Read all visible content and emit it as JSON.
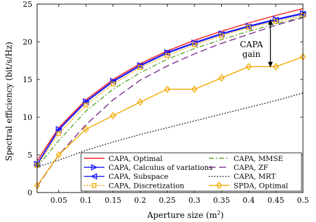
{
  "chart_data": {
    "type": "line",
    "xlabel": "Aperture size (m",
    "xlabel_sup": "2",
    "xlabel_close": ")",
    "ylabel": "Spectral efficiency (bit/s/Hz)",
    "xlim": [
      0.01,
      0.5
    ],
    "ylim": [
      0,
      25
    ],
    "xticks": [
      0.05,
      0.1,
      0.15,
      0.2,
      0.25,
      0.3,
      0.35,
      0.4,
      0.45,
      0.5
    ],
    "yticks": [
      0,
      5,
      10,
      15,
      20,
      25
    ],
    "xtick_labels": [
      "0.05",
      "0.1",
      "0.15",
      "0.2",
      "0.25",
      "0.3",
      "0.35",
      "0.4",
      "0.45",
      "0.5"
    ],
    "ytick_labels": [
      "0",
      "5",
      "10",
      "15",
      "20",
      "25"
    ],
    "grid": false,
    "legend_position": "bottom, inside axes, two columns",
    "annotation": {
      "text_line1": "CAPA",
      "text_line2": "gain",
      "x": 0.44,
      "y_top": 23.0,
      "y_bottom": 16.6
    },
    "x": [
      0.01,
      0.05,
      0.1,
      0.15,
      0.2,
      0.25,
      0.3,
      0.35,
      0.4,
      0.45,
      0.5
    ],
    "series": [
      {
        "name": "CAPA, Optimal",
        "color": "#ff1a1a",
        "dash": "",
        "marker": "none",
        "values": [
          4.2,
          8.6,
          12.3,
          15.0,
          17.1,
          18.8,
          20.2,
          21.4,
          22.5,
          23.5,
          24.4
        ]
      },
      {
        "name": "CAPA, Calculus of variations",
        "color": "#1a1aff",
        "dash": "",
        "marker": "triangle-right",
        "values": [
          3.8,
          8.4,
          12.1,
          14.8,
          16.9,
          18.6,
          19.9,
          21.1,
          22.1,
          23.0,
          23.8
        ]
      },
      {
        "name": "CAPA, Subspace",
        "color": "#1a1aff",
        "dash": "",
        "marker": "triangle-left",
        "values": [
          3.7,
          8.3,
          12.0,
          14.7,
          16.8,
          18.5,
          19.8,
          21.0,
          22.0,
          22.9,
          23.7
        ]
      },
      {
        "name": "CAPA, Discretization",
        "color": "#f2a900",
        "dash": "2,2",
        "marker": "square",
        "values": [
          3.6,
          7.8,
          11.6,
          14.4,
          16.6,
          18.2,
          19.6,
          20.8,
          21.9,
          22.7,
          23.5
        ]
      },
      {
        "name": "CAPA, MMSE",
        "color": "#5ca832",
        "dash": "7,3,2,3",
        "marker": "none",
        "values": [
          3.4,
          6.9,
          10.8,
          13.7,
          15.9,
          17.7,
          19.1,
          20.3,
          21.4,
          22.4,
          23.3
        ]
      },
      {
        "name": "CAPA, ZF",
        "color": "#7a2b8f",
        "dash": "10,5",
        "marker": "none",
        "values": [
          0.8,
          5.0,
          9.0,
          12.3,
          14.9,
          16.8,
          18.4,
          19.8,
          21.0,
          22.2,
          23.2
        ]
      },
      {
        "name": "CAPA, MRT",
        "color": "#000000",
        "dash": "1.5,2.5",
        "marker": "none",
        "values": [
          3.4,
          4.3,
          5.6,
          6.7,
          7.7,
          8.6,
          9.5,
          10.4,
          11.3,
          12.2,
          13.2
        ]
      },
      {
        "name": "SPDA, Optimal",
        "color": "#f2a900",
        "dash": "",
        "marker": "diamond",
        "values": [
          0.9,
          5.0,
          8.4,
          10.2,
          12.0,
          13.7,
          13.7,
          15.2,
          16.7,
          16.7,
          18.0
        ]
      }
    ]
  }
}
